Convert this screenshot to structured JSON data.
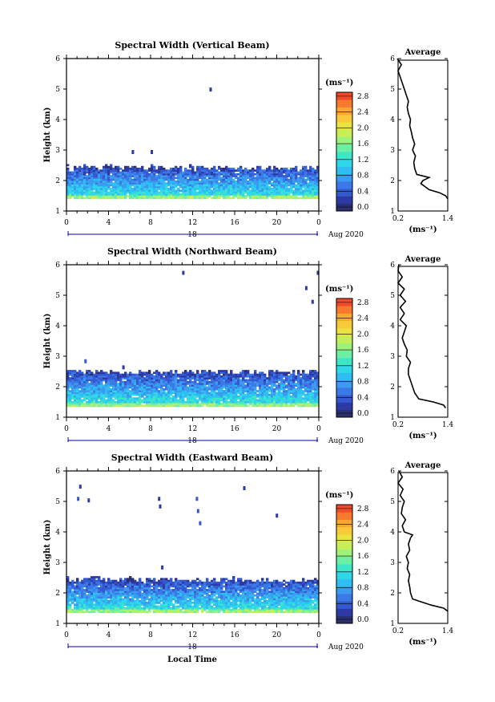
{
  "colors": {
    "frame": "#000000",
    "tick_period": "#0000aa",
    "scale": [
      "#2a2f6e",
      "#2d3aa6",
      "#3458d0",
      "#3b79e6",
      "#3a9bf0",
      "#2fbdf2",
      "#2fd8e8",
      "#3ee6c8",
      "#6cefa2",
      "#9cf27a",
      "#c6ef57",
      "#e9e33f",
      "#f8c93a",
      "#fba533",
      "#f8792d",
      "#f04a2d"
    ]
  },
  "x_axis": {
    "ticks": [
      "0",
      "4",
      "8",
      "12",
      "16",
      "20",
      "0"
    ],
    "period_label": "18",
    "date_label": "Aug 2020",
    "xlabel": "Local Time"
  },
  "y_axis": {
    "ticks": [
      "1",
      "2",
      "3",
      "4",
      "5",
      "6"
    ],
    "ylabel": "Height (km)"
  },
  "colorbar": {
    "unit": "(ms⁻¹)",
    "ticks": [
      "0.0",
      "0.4",
      "0.8",
      "1.2",
      "1.6",
      "2.0",
      "2.4",
      "2.8"
    ]
  },
  "avg": {
    "title": "Average",
    "ticks_x": [
      "0.2",
      "1.4"
    ],
    "xlabel": "(ms⁻¹)",
    "ticks_y": [
      "1",
      "2",
      "3",
      "4",
      "5",
      "6"
    ]
  },
  "chart_data": [
    {
      "type": "heatmap",
      "title": "Spectral Width (Vertical Beam)",
      "x_range_hours": [
        0,
        24
      ],
      "y_range_km": [
        1,
        6
      ],
      "value_range": [
        0,
        3.0
      ],
      "echo_band_km": [
        1.4,
        2.5
      ],
      "isolated_echoes": [
        {
          "t": 13.6,
          "h": 5.0,
          "v": 0.3
        },
        {
          "t": 6.2,
          "h": 2.95,
          "v": 0.3
        },
        {
          "t": 8.0,
          "h": 2.95,
          "v": 0.3
        }
      ],
      "average_profile": {
        "height_km": [
          1.4,
          1.5,
          1.6,
          1.7,
          1.8,
          1.9,
          2.0,
          2.1,
          2.2,
          2.4,
          2.6,
          2.8,
          3.0,
          3.2,
          3.4,
          3.6,
          3.8,
          4.0,
          4.2,
          4.4,
          4.6,
          4.8,
          5.0,
          5.2,
          5.4,
          5.6,
          5.8,
          6.0
        ],
        "width": [
          1.4,
          1.35,
          1.2,
          0.95,
          0.85,
          0.75,
          0.8,
          0.95,
          0.65,
          0.6,
          0.58,
          0.62,
          0.55,
          0.6,
          0.55,
          0.52,
          0.48,
          0.5,
          0.45,
          0.42,
          0.45,
          0.4,
          0.35,
          0.3,
          0.25,
          0.2,
          0.28,
          0.18
        ]
      }
    },
    {
      "type": "heatmap",
      "title": "Spectral Width (Northward Beam)",
      "x_range_hours": [
        0,
        24
      ],
      "y_range_km": [
        1,
        6
      ],
      "value_range": [
        0,
        3.0
      ],
      "echo_band_km": [
        1.35,
        2.55
      ],
      "isolated_echoes": [
        {
          "t": 11.0,
          "h": 5.75,
          "v": 0.3
        },
        {
          "t": 23.8,
          "h": 5.75,
          "v": 0.3
        },
        {
          "t": 22.7,
          "h": 5.25,
          "v": 0.3
        },
        {
          "t": 23.3,
          "h": 4.8,
          "v": 0.3
        },
        {
          "t": 1.7,
          "h": 2.85,
          "v": 0.5
        },
        {
          "t": 5.3,
          "h": 2.65,
          "v": 0.3
        }
      ],
      "average_profile": {
        "height_km": [
          1.3,
          1.4,
          1.5,
          1.6,
          1.8,
          2.0,
          2.2,
          2.4,
          2.6,
          2.8,
          3.0,
          3.2,
          3.4,
          3.6,
          3.8,
          4.0,
          4.2,
          4.4,
          4.6,
          4.8,
          5.0,
          5.2,
          5.4,
          5.6,
          5.8,
          6.0
        ],
        "width": [
          1.35,
          1.3,
          1.05,
          0.7,
          0.6,
          0.55,
          0.5,
          0.45,
          0.45,
          0.5,
          0.4,
          0.42,
          0.35,
          0.3,
          0.35,
          0.4,
          0.25,
          0.35,
          0.25,
          0.38,
          0.25,
          0.35,
          0.2,
          0.3,
          0.2,
          0.22
        ]
      }
    },
    {
      "type": "heatmap",
      "title": "Spectral Width (Eastward Beam)",
      "x_range_hours": [
        0,
        24
      ],
      "y_range_km": [
        1,
        6
      ],
      "value_range": [
        0,
        3.0
      ],
      "echo_band_km": [
        1.35,
        2.5
      ],
      "isolated_echoes": [
        {
          "t": 1.0,
          "h": 5.1,
          "v": 0.5
        },
        {
          "t": 1.2,
          "h": 5.5,
          "v": 0.3
        },
        {
          "t": 2.0,
          "h": 5.05,
          "v": 0.3
        },
        {
          "t": 8.7,
          "h": 5.1,
          "v": 0.3
        },
        {
          "t": 8.8,
          "h": 4.85,
          "v": 0.3
        },
        {
          "t": 12.3,
          "h": 5.1,
          "v": 0.4
        },
        {
          "t": 12.4,
          "h": 4.7,
          "v": 0.4
        },
        {
          "t": 12.6,
          "h": 4.3,
          "v": 0.4
        },
        {
          "t": 16.8,
          "h": 5.45,
          "v": 0.3
        },
        {
          "t": 19.9,
          "h": 4.55,
          "v": 0.3
        },
        {
          "t": 9.0,
          "h": 2.85,
          "v": 0.3
        }
      ],
      "average_profile": {
        "height_km": [
          1.4,
          1.5,
          1.6,
          1.8,
          2.0,
          2.2,
          2.4,
          2.6,
          2.8,
          3.0,
          3.2,
          3.4,
          3.6,
          3.8,
          3.9,
          4.0,
          4.2,
          4.4,
          4.6,
          4.8,
          5.0,
          5.2,
          5.4,
          5.6,
          5.8,
          6.0
        ],
        "width": [
          1.4,
          1.3,
          1.0,
          0.55,
          0.5,
          0.48,
          0.45,
          0.48,
          0.42,
          0.45,
          0.4,
          0.48,
          0.45,
          0.5,
          0.55,
          0.35,
          0.3,
          0.38,
          0.28,
          0.3,
          0.35,
          0.25,
          0.32,
          0.2,
          0.3,
          0.22
        ]
      }
    }
  ]
}
